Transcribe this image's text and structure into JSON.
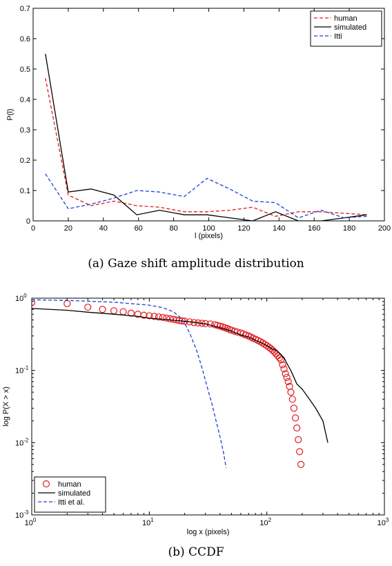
{
  "panels": [
    {
      "caption": "(a)  Gaze shift amplitude distribution",
      "chart_data": {
        "type": "line",
        "title": "",
        "xlabel": "l (pixels)",
        "ylabel": "P(l)",
        "xlim": [
          0,
          200
        ],
        "ylim": [
          0,
          0.7
        ],
        "xticks": [
          0,
          20,
          40,
          60,
          80,
          100,
          120,
          140,
          160,
          180,
          200
        ],
        "xtick_labels": [
          "0",
          "20",
          "40",
          "60",
          "80",
          "100",
          "120",
          "140",
          "160",
          "180",
          "200"
        ],
        "yticks": [
          0,
          0.1,
          0.2,
          0.3,
          0.4,
          0.5,
          0.6,
          0.7
        ],
        "ytick_labels": [
          "0",
          "0.1",
          "0.2",
          "0.3",
          "0.4",
          "0.5",
          "0.6",
          "0.7"
        ],
        "grid": false,
        "legend_position": "top-right",
        "series": [
          {
            "name": "human",
            "color": "#e41a1c",
            "dash": "dashed",
            "x": [
              7,
              20,
              33,
              46,
              59,
              72,
              86,
              99,
              112,
              125,
              138,
              151,
              164,
              177,
              190
            ],
            "y": [
              0.47,
              0.085,
              0.05,
              0.065,
              0.05,
              0.045,
              0.03,
              0.03,
              0.035,
              0.045,
              0.015,
              0.03,
              0.03,
              0.025,
              0.02
            ]
          },
          {
            "name": "simulated",
            "color": "#000000",
            "dash": "solid",
            "x": [
              7,
              20,
              33,
              46,
              59,
              72,
              86,
              99,
              112,
              125,
              138,
              151,
              164,
              177,
              190
            ],
            "y": [
              0.55,
              0.095,
              0.105,
              0.085,
              0.02,
              0.035,
              0.02,
              0.02,
              0.01,
              0.0,
              0.03,
              0.0,
              0.0,
              0.01,
              0.02
            ]
          },
          {
            "name": "Itti",
            "color": "#1f3fd6",
            "dash": "dashed",
            "x": [
              7,
              20,
              33,
              46,
              59,
              72,
              86,
              99,
              112,
              125,
              138,
              151,
              164,
              177,
              190
            ],
            "y": [
              0.155,
              0.04,
              0.055,
              0.075,
              0.1,
              0.095,
              0.08,
              0.14,
              0.105,
              0.065,
              0.06,
              0.01,
              0.035,
              0.01,
              0.015
            ]
          }
        ]
      }
    },
    {
      "caption": "(b)  CCDF",
      "chart_data": {
        "type": "line",
        "title": "",
        "xlabel": "log x (pixels)",
        "ylabel": "log P(X > x)",
        "xscale": "log",
        "yscale": "log",
        "xlim": [
          1,
          1000
        ],
        "ylim": [
          0.001,
          1
        ],
        "xticks": [
          1,
          10,
          100,
          1000
        ],
        "xtick_labels": [
          [
            "10",
            "0"
          ],
          [
            "10",
            "1"
          ],
          [
            "10",
            "2"
          ],
          [
            "10",
            "3"
          ]
        ],
        "yticks": [
          0.001,
          0.01,
          0.1,
          1
        ],
        "ytick_labels": [
          [
            "10",
            "-3"
          ],
          [
            "10",
            "-2"
          ],
          [
            "10",
            "-1"
          ],
          [
            "10",
            "0"
          ]
        ],
        "grid": false,
        "legend_position": "bottom-left",
        "series": [
          {
            "name": "human",
            "color": "#e41a1c",
            "style": "markers",
            "marker": "circle",
            "x": [
              1,
              2,
              3,
              4,
              5,
              6,
              7,
              8,
              9,
              10,
              11,
              12,
              13,
              14,
              15,
              16,
              17,
              18,
              19,
              20,
              22,
              24,
              26,
              28,
              30,
              33,
              36,
              38,
              40,
              42,
              44,
              46,
              48,
              50,
              53,
              56,
              60,
              63,
              66,
              70,
              73,
              76,
              80,
              84,
              88,
              92,
              96,
              100,
              104,
              108,
              112,
              116,
              120,
              124,
              128,
              132,
              136,
              140,
              144,
              148,
              152,
              156,
              160,
              165,
              170,
              175,
              180,
              185,
              190,
              195
            ],
            "y": [
              0.87,
              0.84,
              0.75,
              0.7,
              0.67,
              0.65,
              0.62,
              0.6,
              0.58,
              0.57,
              0.56,
              0.55,
              0.54,
              0.53,
              0.52,
              0.51,
              0.5,
              0.49,
              0.485,
              0.48,
              0.47,
              0.46,
              0.455,
              0.45,
              0.445,
              0.44,
              0.43,
              0.42,
              0.41,
              0.4,
              0.39,
              0.38,
              0.37,
              0.36,
              0.35,
              0.34,
              0.33,
              0.32,
              0.31,
              0.3,
              0.29,
              0.28,
              0.27,
              0.26,
              0.25,
              0.24,
              0.23,
              0.22,
              0.21,
              0.2,
              0.19,
              0.18,
              0.17,
              0.16,
              0.15,
              0.14,
              0.12,
              0.105,
              0.09,
              0.08,
              0.07,
              0.06,
              0.05,
              0.04,
              0.03,
              0.022,
              0.016,
              0.011,
              0.0075,
              0.005
            ]
          },
          {
            "name": "simulated",
            "color": "#000000",
            "dash": "solid",
            "x": [
              1,
              2,
              3,
              5,
              8,
              10,
              15,
              20,
              25,
              30,
              40,
              50,
              60,
              70,
              80,
              90,
              100,
              110,
              120,
              130,
              140,
              150,
              160,
              170,
              180,
              200,
              230,
              260,
              300,
              330
            ],
            "y": [
              0.72,
              0.68,
              0.64,
              0.6,
              0.56,
              0.53,
              0.5,
              0.48,
              0.46,
              0.44,
              0.39,
              0.35,
              0.31,
              0.29,
              0.26,
              0.24,
              0.22,
              0.2,
              0.19,
              0.17,
              0.15,
              0.12,
              0.1,
              0.08,
              0.065,
              0.055,
              0.04,
              0.03,
              0.02,
              0.01
            ]
          },
          {
            "name": "Itti et al.",
            "color": "#1f3fd6",
            "dash": "dashed",
            "x": [
              1,
              2,
              3,
              5,
              7,
              10,
              13,
              16,
              18,
              20,
              22,
              25,
              28,
              31,
              34,
              37,
              40,
              43,
              45
            ],
            "y": [
              0.95,
              0.93,
              0.91,
              0.88,
              0.84,
              0.8,
              0.74,
              0.65,
              0.56,
              0.45,
              0.33,
              0.2,
              0.11,
              0.06,
              0.035,
              0.02,
              0.012,
              0.007,
              0.0045
            ]
          }
        ]
      }
    }
  ]
}
